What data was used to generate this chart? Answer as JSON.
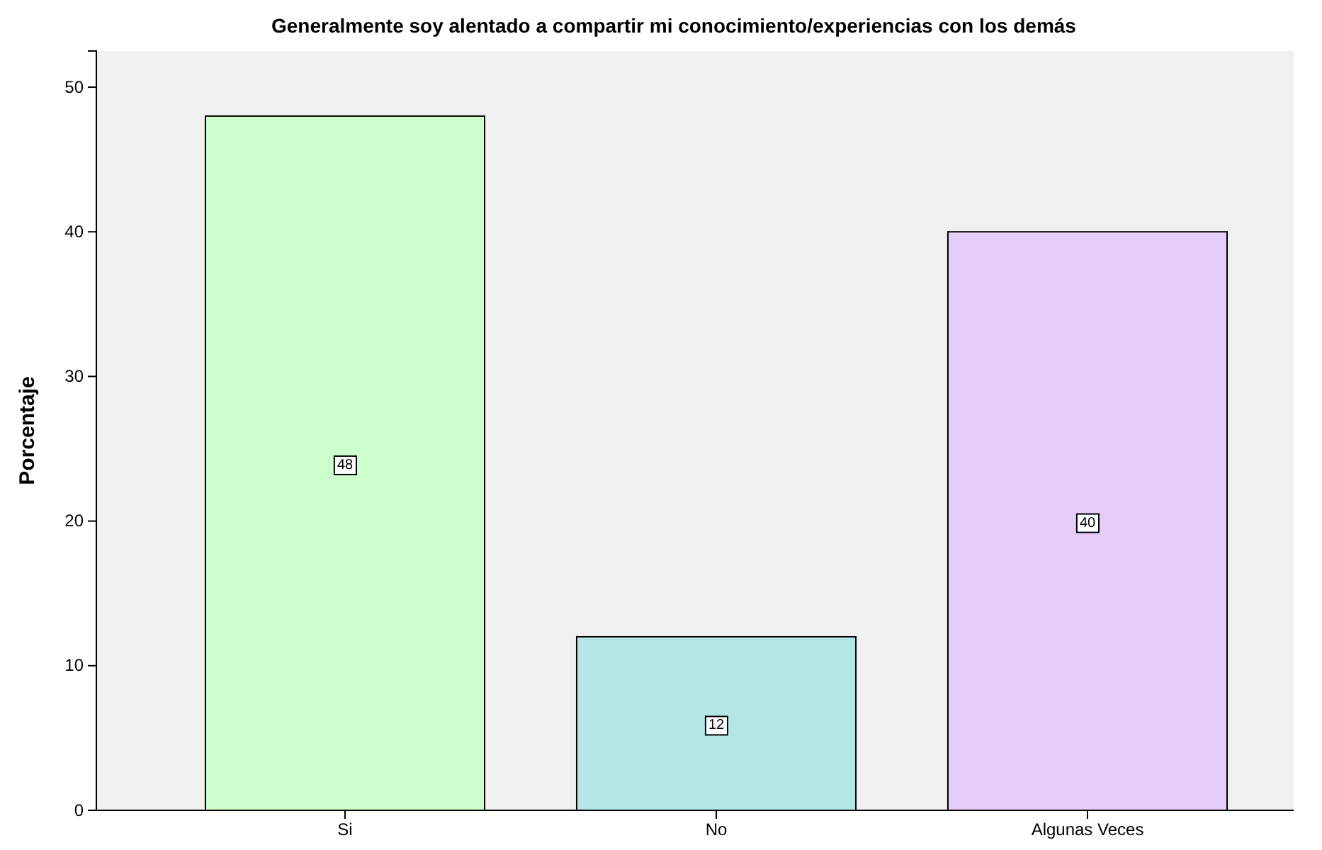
{
  "chart_data": {
    "type": "bar",
    "title": "Generalmente soy alentado a compartir mi conocimiento/experiencias con los demás",
    "ylabel": "Porcentaje",
    "categories": [
      "Si",
      "No",
      "Algunas Veces"
    ],
    "values": [
      48,
      12,
      40
    ],
    "colors": [
      "#ccffcc",
      "#b4e6e6",
      "#e6ccf8"
    ],
    "ylim": [
      0,
      52.5
    ],
    "yticks": [
      0,
      10,
      20,
      30,
      40,
      50
    ],
    "data_labels": true,
    "grid": false
  }
}
